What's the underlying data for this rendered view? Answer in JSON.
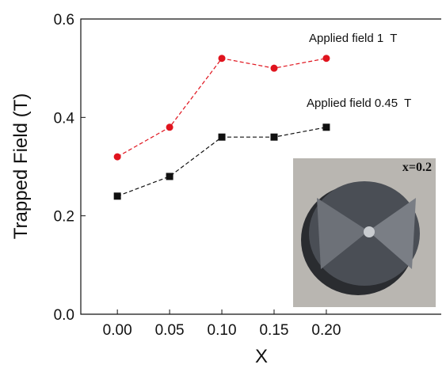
{
  "chart_data": {
    "type": "line",
    "x_label": "X",
    "y_label": "Trapped Field (T)",
    "x": [
      0.0,
      0.05,
      0.1,
      0.15,
      0.2
    ],
    "series": [
      {
        "name": "Applied field 1  T",
        "color": "#e0141e",
        "marker": "circle",
        "values": [
          0.32,
          0.38,
          0.52,
          0.5,
          0.52
        ]
      },
      {
        "name": "Applied field 0.45  T",
        "color": "#111111",
        "marker": "square",
        "values": [
          0.24,
          0.28,
          0.36,
          0.36,
          0.38
        ]
      }
    ],
    "xlim": [
      -0.035,
      0.31
    ],
    "ylim": [
      0,
      0.6
    ],
    "xticks": [
      {
        "value": 0,
        "label": "0.00"
      },
      {
        "value": 0.05,
        "label": "0.05"
      },
      {
        "value": 0.1,
        "label": "0.10"
      },
      {
        "value": 0.15,
        "label": "0.15"
      },
      {
        "value": 0.2,
        "label": "0.20"
      }
    ],
    "yticks": [
      {
        "value": 0,
        "label": "0.0"
      },
      {
        "value": 0.2,
        "label": "0.2"
      },
      {
        "value": 0.4,
        "label": "0.4"
      },
      {
        "value": 0.6,
        "label": "0.6"
      }
    ],
    "inset_label": "x=0.2"
  }
}
